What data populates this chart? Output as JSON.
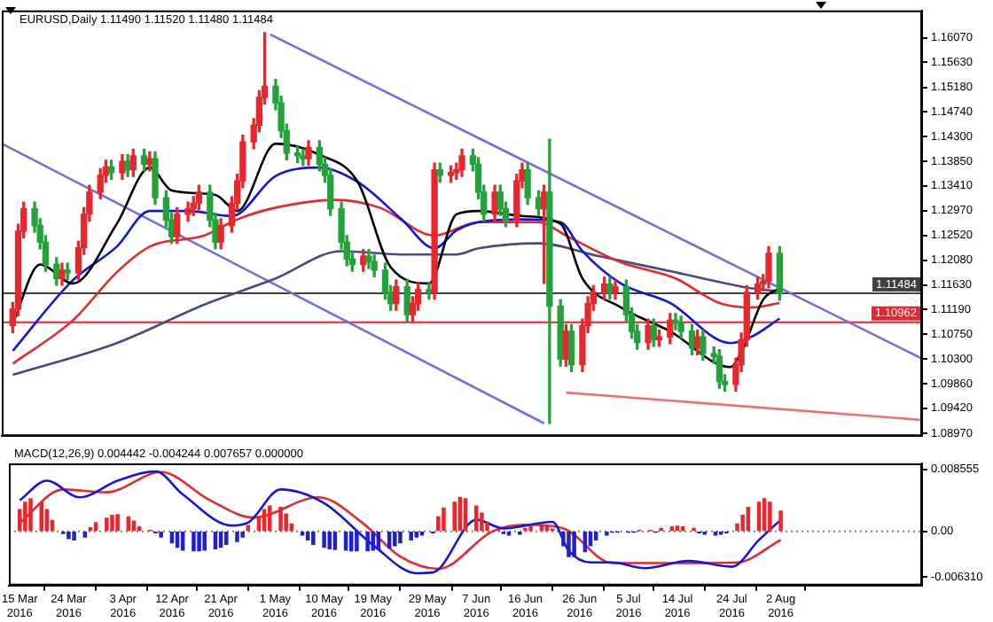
{
  "chart_data": [
    {
      "type": "candlestick",
      "title": "EURUSD,Daily 1.11490 1.11520 1.11480 1.11484",
      "tick_labels": "y",
      "x": [
        "2016-03-15",
        "2016-03-16",
        "2016-03-17",
        "2016-03-19",
        "2016-03-20",
        "2016-03-21",
        "2016-03-23",
        "2016-03-24",
        "2016-03-25",
        "2016-03-27",
        "2016-03-28",
        "2016-03-29",
        "2016-03-31",
        "2016-04-01",
        "2016-04-02",
        "2016-04-04",
        "2016-04-05",
        "2016-04-06",
        "2016-04-08",
        "2016-04-09",
        "2016-04-10",
        "2016-04-12",
        "2016-04-13",
        "2016-04-14",
        "2016-04-16",
        "2016-04-17",
        "2016-04-18",
        "2016-04-20",
        "2016-04-21",
        "2016-04-22",
        "2016-04-24",
        "2016-04-25",
        "2016-04-26",
        "2016-04-28",
        "2016-04-29",
        "2016-04-30",
        "2016-05-02",
        "2016-05-03",
        "2016-05-04",
        "2016-05-06",
        "2016-05-07",
        "2016-05-08",
        "2016-05-10",
        "2016-05-11",
        "2016-05-12",
        "2016-05-14",
        "2016-05-15",
        "2016-05-16",
        "2016-05-18",
        "2016-05-19",
        "2016-05-20",
        "2016-05-22",
        "2016-05-23",
        "2016-05-24",
        "2016-05-26",
        "2016-05-27",
        "2016-05-28",
        "2016-05-30",
        "2016-05-31",
        "2016-06-01",
        "2016-06-03",
        "2016-06-04",
        "2016-06-05",
        "2016-06-07",
        "2016-06-08",
        "2016-06-09",
        "2016-06-11",
        "2016-06-12",
        "2016-06-13",
        "2016-06-15",
        "2016-06-16",
        "2016-06-17",
        "2016-06-19",
        "2016-06-20",
        "2016-06-21",
        "2016-06-23",
        "2016-06-24",
        "2016-06-25",
        "2016-06-27",
        "2016-06-28",
        "2016-06-29",
        "2016-07-01",
        "2016-07-02",
        "2016-07-03",
        "2016-07-05",
        "2016-07-06",
        "2016-07-07",
        "2016-07-09",
        "2016-07-10",
        "2016-07-11",
        "2016-07-13",
        "2016-07-14",
        "2016-07-15",
        "2016-07-17",
        "2016-07-18",
        "2016-07-19",
        "2016-07-21",
        "2016-07-22",
        "2016-07-23",
        "2016-07-25",
        "2016-07-26",
        "2016-07-27",
        "2016-07-29",
        "2016-07-30",
        "2016-07-31",
        "2016-08-02"
      ],
      "xlim": [
        "2016-03-13",
        "2016-08-28"
      ],
      "ylim": [
        1.0892,
        1.1656
      ],
      "yticks": [
        {
          "value": 1.1607,
          "label": "1.16070"
        },
        {
          "value": 1.1563,
          "label": "1.15630"
        },
        {
          "value": 1.1518,
          "label": "1.15180"
        },
        {
          "value": 1.1474,
          "label": "1.14740"
        },
        {
          "value": 1.143,
          "label": "1.14300"
        },
        {
          "value": 1.1385,
          "label": "1.13850"
        },
        {
          "value": 1.1341,
          "label": "1.13410"
        },
        {
          "value": 1.1297,
          "label": "1.12970"
        },
        {
          "value": 1.1252,
          "label": "1.12520"
        },
        {
          "value": 1.1208,
          "label": "1.12080"
        },
        {
          "value": 1.1163,
          "label": "1.11630"
        },
        {
          "value": 1.1119,
          "label": "1.11190"
        },
        {
          "value": 1.1075,
          "label": "1.10750"
        },
        {
          "value": 1.103,
          "label": "1.10300"
        },
        {
          "value": 1.0986,
          "label": "1.09860"
        },
        {
          "value": 1.0942,
          "label": "1.09420"
        },
        {
          "value": 1.0897,
          "label": "1.08970"
        }
      ],
      "ref_lines": [
        {
          "axis": "y",
          "value": 1.11484,
          "label": "1.11484",
          "color": "#404040"
        },
        {
          "axis": "y",
          "value": 1.10962,
          "label": "1.10962",
          "color": "#e8262b"
        }
      ],
      "series": [
        {
          "ohlc": [
            [
              1.109,
              1.1132,
              1.1078,
              1.112
            ],
            [
              1.112,
              1.1272,
              1.1108,
              1.126
            ],
            [
              1.126,
              1.1312,
              1.1248,
              1.13
            ],
            [
              1.13,
              1.1312,
              1.1258,
              1.127
            ],
            [
              1.127,
              1.1282,
              1.1228,
              1.124
            ],
            [
              1.124,
              1.1252,
              1.1188,
              1.12
            ],
            [
              1.12,
              1.1212,
              1.1163,
              1.1175
            ],
            [
              1.1175,
              1.1202,
              1.1163,
              1.119
            ],
            [
              1.119,
              1.1202,
              1.1173,
              1.1185
            ],
            [
              1.1185,
              1.1242,
              1.1173,
              1.123
            ],
            [
              1.123,
              1.1302,
              1.1218,
              1.129
            ],
            [
              1.129,
              1.1342,
              1.1278,
              1.133
            ],
            [
              1.133,
              1.1372,
              1.1318,
              1.136
            ],
            [
              1.136,
              1.1387,
              1.1348,
              1.1375
            ],
            [
              1.1375,
              1.1387,
              1.1353,
              1.1365
            ],
            [
              1.1365,
              1.1397,
              1.1353,
              1.1385
            ],
            [
              1.1385,
              1.1397,
              1.1358,
              1.137
            ],
            [
              1.137,
              1.1407,
              1.1358,
              1.1395
            ],
            [
              1.1395,
              1.1407,
              1.1368,
              1.138
            ],
            [
              1.138,
              1.1402,
              1.1368,
              1.139
            ],
            [
              1.139,
              1.1402,
              1.1308,
              1.132
            ],
            [
              1.132,
              1.1332,
              1.1268,
              1.128
            ],
            [
              1.128,
              1.1292,
              1.1238,
              1.125
            ],
            [
              1.125,
              1.1302,
              1.1238,
              1.129
            ],
            [
              1.129,
              1.1312,
              1.1278,
              1.13
            ],
            [
              1.13,
              1.1322,
              1.1288,
              1.131
            ],
            [
              1.131,
              1.1342,
              1.1298,
              1.133
            ],
            [
              1.133,
              1.1342,
              1.1268,
              1.128
            ],
            [
              1.128,
              1.1292,
              1.1228,
              1.124
            ],
            [
              1.124,
              1.1282,
              1.1228,
              1.127
            ],
            [
              1.127,
              1.1322,
              1.1258,
              1.131
            ],
            [
              1.131,
              1.1362,
              1.1298,
              1.135
            ],
            [
              1.135,
              1.1432,
              1.1338,
              1.142
            ],
            [
              1.142,
              1.1462,
              1.1408,
              1.145
            ],
            [
              1.145,
              1.1512,
              1.1438,
              1.15
            ],
            [
              1.15,
              1.1616,
              1.1488,
              1.152
            ],
            [
              1.152,
              1.1532,
              1.1478,
              1.149
            ],
            [
              1.149,
              1.1502,
              1.1428,
              1.144
            ],
            [
              1.144,
              1.1452,
              1.1388,
              1.14
            ],
            [
              1.14,
              1.1412,
              1.1383,
              1.1395
            ],
            [
              1.1395,
              1.1407,
              1.1378,
              1.139
            ],
            [
              1.139,
              1.1422,
              1.1378,
              1.141
            ],
            [
              1.141,
              1.1422,
              1.1368,
              1.138
            ],
            [
              1.138,
              1.1392,
              1.1348,
              1.136
            ],
            [
              1.136,
              1.1372,
              1.1288,
              1.13
            ],
            [
              1.13,
              1.1312,
              1.1228,
              1.124
            ],
            [
              1.124,
              1.1252,
              1.1198,
              1.121
            ],
            [
              1.121,
              1.1222,
              1.1188,
              1.12
            ],
            [
              1.12,
              1.1227,
              1.1188,
              1.1215
            ],
            [
              1.1215,
              1.1227,
              1.1193,
              1.1205
            ],
            [
              1.1205,
              1.1217,
              1.1178,
              1.119
            ],
            [
              1.119,
              1.1202,
              1.1138,
              1.115
            ],
            [
              1.115,
              1.1162,
              1.1118,
              1.113
            ],
            [
              1.113,
              1.1172,
              1.1118,
              1.116
            ],
            [
              1.116,
              1.1172,
              1.1098,
              1.111
            ],
            [
              1.111,
              1.1142,
              1.1098,
              1.113
            ],
            [
              1.113,
              1.1167,
              1.1118,
              1.1155
            ],
            [
              1.1155,
              1.1167,
              1.1138,
              1.115
            ],
            [
              1.115,
              1.1382,
              1.1138,
              1.137
            ],
            [
              1.137,
              1.1382,
              1.1348,
              1.136
            ],
            [
              1.136,
              1.1377,
              1.1348,
              1.1365
            ],
            [
              1.1365,
              1.1382,
              1.1353,
              1.137
            ],
            [
              1.137,
              1.1407,
              1.1358,
              1.1395
            ],
            [
              1.1395,
              1.1407,
              1.1368,
              1.138
            ],
            [
              1.138,
              1.1392,
              1.1318,
              1.133
            ],
            [
              1.133,
              1.1342,
              1.1278,
              1.129
            ],
            [
              1.129,
              1.1342,
              1.1278,
              1.133
            ],
            [
              1.133,
              1.1342,
              1.1288,
              1.13
            ],
            [
              1.13,
              1.1312,
              1.1268,
              1.128
            ],
            [
              1.128,
              1.1362,
              1.1268,
              1.135
            ],
            [
              1.135,
              1.1382,
              1.1338,
              1.137
            ],
            [
              1.137,
              1.1382,
              1.1308,
              1.132
            ],
            [
              1.132,
              1.1332,
              1.1288,
              1.13
            ],
            [
              1.13,
              1.1342,
              1.1166,
              1.133
            ],
            [
              1.133,
              1.1425,
              1.0915,
              1.1125
            ],
            [
              1.1125,
              1.1137,
              1.1018,
              1.103
            ],
            [
              1.103,
              1.1092,
              1.1018,
              1.108
            ],
            [
              1.108,
              1.1092,
              1.1008,
              1.102
            ],
            [
              1.102,
              1.1102,
              1.1008,
              1.109
            ],
            [
              1.109,
              1.1142,
              1.1078,
              1.113
            ],
            [
              1.113,
              1.1162,
              1.1118,
              1.115
            ],
            [
              1.115,
              1.1177,
              1.1138,
              1.1165
            ],
            [
              1.1165,
              1.1177,
              1.1138,
              1.115
            ],
            [
              1.115,
              1.1172,
              1.1138,
              1.116
            ],
            [
              1.116,
              1.1172,
              1.1098,
              1.111
            ],
            [
              1.111,
              1.1122,
              1.1068,
              1.108
            ],
            [
              1.108,
              1.1092,
              1.1048,
              1.106
            ],
            [
              1.106,
              1.1102,
              1.1048,
              1.109
            ],
            [
              1.109,
              1.1102,
              1.1053,
              1.1065
            ],
            [
              1.1065,
              1.1082,
              1.1053,
              1.107
            ],
            [
              1.107,
              1.1112,
              1.1058,
              1.11
            ],
            [
              1.11,
              1.1112,
              1.1083,
              1.1095
            ],
            [
              1.1095,
              1.1107,
              1.1068,
              1.108
            ],
            [
              1.108,
              1.1092,
              1.1038,
              1.105
            ],
            [
              1.105,
              1.1082,
              1.1038,
              1.107
            ],
            [
              1.107,
              1.1082,
              1.1028,
              1.104
            ],
            [
              1.104,
              1.1052,
              1.1023,
              1.1035
            ],
            [
              1.1035,
              1.1047,
              1.0978,
              1.099
            ],
            [
              1.099,
              1.1002,
              1.0973,
              1.0985
            ],
            [
              1.0985,
              1.1032,
              1.0973,
              1.102
            ],
            [
              1.102,
              1.1077,
              1.1008,
              1.1065
            ],
            [
              1.1065,
              1.1162,
              1.1053,
              1.115
            ],
            [
              1.115,
              1.1177,
              1.1138,
              1.1165
            ],
            [
              1.1165,
              1.1182,
              1.1153,
              1.117
            ],
            [
              1.117,
              1.1232,
              1.1158,
              1.122
            ],
            [
              1.122,
              1.1232,
              1.1136,
              1.1148
            ]
          ],
          "colors": [
            "#e8262b",
            "#e8262b",
            "#e8262b",
            "#22a33a",
            "#22a33a",
            "#22a33a",
            "#22a33a",
            "#e8262b",
            "#22a33a",
            "#e8262b",
            "#e8262b",
            "#e8262b",
            "#e8262b",
            "#e8262b",
            "#22a33a",
            "#e8262b",
            "#22a33a",
            "#e8262b",
            "#22a33a",
            "#e8262b",
            "#22a33a",
            "#22a33a",
            "#22a33a",
            "#e8262b",
            "#e8262b",
            "#e8262b",
            "#e8262b",
            "#22a33a",
            "#22a33a",
            "#e8262b",
            "#e8262b",
            "#e8262b",
            "#e8262b",
            "#e8262b",
            "#e8262b",
            "#e8262b",
            "#22a33a",
            "#22a33a",
            "#22a33a",
            "#22a33a",
            "#22a33a",
            "#e8262b",
            "#22a33a",
            "#22a33a",
            "#22a33a",
            "#22a33a",
            "#22a33a",
            "#22a33a",
            "#e8262b",
            "#22a33a",
            "#22a33a",
            "#22a33a",
            "#22a33a",
            "#e8262b",
            "#22a33a",
            "#e8262b",
            "#e8262b",
            "#22a33a",
            "#e8262b",
            "#22a33a",
            "#e8262b",
            "#e8262b",
            "#e8262b",
            "#22a33a",
            "#22a33a",
            "#22a33a",
            "#e8262b",
            "#22a33a",
            "#22a33a",
            "#e8262b",
            "#e8262b",
            "#22a33a",
            "#22a33a",
            "#e8262b",
            "#22a33a",
            "#22a33a",
            "#e8262b",
            "#22a33a",
            "#e8262b",
            "#e8262b",
            "#e8262b",
            "#e8262b",
            "#22a33a",
            "#e8262b",
            "#22a33a",
            "#22a33a",
            "#22a33a",
            "#e8262b",
            "#22a33a",
            "#e8262b",
            "#e8262b",
            "#22a33a",
            "#22a33a",
            "#22a33a",
            "#e8262b",
            "#22a33a",
            "#22a33a",
            "#22a33a",
            "#22a33a",
            "#e8262b",
            "#e8262b",
            "#e8262b",
            "#e8262b",
            "#e8262b",
            "#e8262b",
            "#22a33a"
          ]
        },
        {
          "type": "line",
          "color": "#000000",
          "x": [
            "2016-03-15",
            "2016-03-20",
            "2016-03-26",
            "2016-04-03",
            "2016-04-09",
            "2016-04-13",
            "2016-04-21",
            "2016-04-25",
            "2016-05-02",
            "2016-05-10",
            "2016-05-17",
            "2016-05-23",
            "2016-05-30",
            "2016-06-04",
            "2016-06-08",
            "2016-06-16",
            "2016-06-23",
            "2016-06-27",
            "2016-07-04",
            "2016-07-13",
            "2016-07-24",
            "2016-07-26",
            "2016-07-30",
            "2016-08-02"
          ],
          "values": [
            1.1094,
            1.12,
            1.1166,
            1.1273,
            1.1374,
            1.1333,
            1.1325,
            1.1296,
            1.1417,
            1.1397,
            1.1348,
            1.1195,
            1.1166,
            1.129,
            1.1296,
            1.1287,
            1.1273,
            1.1175,
            1.1123,
            1.108,
            1.1016,
            1.1042,
            1.1137,
            1.1157
          ]
        },
        {
          "type": "line",
          "color": "#1414e0",
          "x": [
            "2016-03-15",
            "2016-03-26",
            "2016-04-03",
            "2016-04-09",
            "2016-04-16",
            "2016-04-24",
            "2016-05-02",
            "2016-05-10",
            "2016-05-17",
            "2016-05-25",
            "2016-05-31",
            "2016-06-04",
            "2016-06-08",
            "2016-06-16",
            "2016-06-23",
            "2016-06-27",
            "2016-07-04",
            "2016-07-13",
            "2016-07-24",
            "2016-07-28",
            "2016-08-02"
          ],
          "values": [
            1.1045,
            1.1172,
            1.1232,
            1.1296,
            1.1296,
            1.1287,
            1.1359,
            1.1374,
            1.1348,
            1.1281,
            1.1229,
            1.1261,
            1.1276,
            1.1281,
            1.1276,
            1.1224,
            1.1166,
            1.1131,
            1.1059,
            1.1071,
            1.1103
          ]
        },
        {
          "type": "line",
          "color": "#e8262b",
          "x": [
            "2016-03-15",
            "2016-03-26",
            "2016-04-03",
            "2016-04-09",
            "2016-04-19",
            "2016-04-25",
            "2016-05-02",
            "2016-05-13",
            "2016-05-21",
            "2016-05-31",
            "2016-06-08",
            "2016-06-19",
            "2016-06-24",
            "2016-07-04",
            "2016-07-14",
            "2016-07-22",
            "2016-07-28",
            "2016-08-02"
          ],
          "values": [
            1.1022,
            1.11,
            1.1186,
            1.1232,
            1.1252,
            1.1281,
            1.1302,
            1.1316,
            1.1302,
            1.1252,
            1.1276,
            1.1276,
            1.1252,
            1.1204,
            1.1175,
            1.1131,
            1.1123,
            1.1131
          ]
        },
        {
          "type": "line",
          "color": "#4a4a80",
          "x": [
            "2016-03-15",
            "2016-04-03",
            "2016-04-19",
            "2016-05-02",
            "2016-05-14",
            "2016-05-25",
            "2016-06-04",
            "2016-06-08",
            "2016-06-19",
            "2016-06-30",
            "2016-07-14",
            "2016-07-28",
            "2016-08-02"
          ],
          "values": [
            1.1002,
            1.1059,
            1.1128,
            1.1175,
            1.1224,
            1.1218,
            1.1218,
            1.1229,
            1.1238,
            1.1215,
            1.1186,
            1.1157,
            1.1152
          ]
        },
        {
          "type": "line",
          "color": "#7070e0",
          "x": [
            "2016-05-01",
            "2016-08-28"
          ],
          "values": [
            1.1613,
            1.1031
          ]
        },
        {
          "type": "line",
          "color": "#7070e0",
          "x": [
            "2016-03-13",
            "2016-06-20"
          ],
          "values": [
            1.1417,
            1.0915
          ]
        },
        {
          "type": "line",
          "color": "#f07070",
          "x": [
            "2016-06-24",
            "2016-08-28"
          ],
          "values": [
            1.097,
            1.0921
          ]
        }
      ]
    },
    {
      "type": "bar",
      "title": "MACD(12,26,9) 0.004442 -0.004244 0.007657 0.000000",
      "x": [
        "2016-03-15",
        "2016-03-16",
        "2016-03-17",
        "2016-03-19",
        "2016-03-20",
        "2016-03-21",
        "2016-03-23",
        "2016-03-24",
        "2016-03-25",
        "2016-03-27",
        "2016-03-28",
        "2016-03-29",
        "2016-03-31",
        "2016-04-01",
        "2016-04-02",
        "2016-04-04",
        "2016-04-05",
        "2016-04-06",
        "2016-04-08",
        "2016-04-09",
        "2016-04-10",
        "2016-04-12",
        "2016-04-13",
        "2016-04-14",
        "2016-04-16",
        "2016-04-17",
        "2016-04-18",
        "2016-04-20",
        "2016-04-21",
        "2016-04-22",
        "2016-04-24",
        "2016-04-25",
        "2016-04-26",
        "2016-04-28",
        "2016-04-29",
        "2016-04-30",
        "2016-05-02",
        "2016-05-03",
        "2016-05-04",
        "2016-05-06",
        "2016-05-07",
        "2016-05-08",
        "2016-05-10",
        "2016-05-11",
        "2016-05-12",
        "2016-05-14",
        "2016-05-15",
        "2016-05-16",
        "2016-05-18",
        "2016-05-19",
        "2016-05-20",
        "2016-05-22",
        "2016-05-23",
        "2016-05-24",
        "2016-05-26",
        "2016-05-27",
        "2016-05-28",
        "2016-05-30",
        "2016-05-31",
        "2016-06-01",
        "2016-06-03",
        "2016-06-04",
        "2016-06-05",
        "2016-06-07",
        "2016-06-08",
        "2016-06-09",
        "2016-06-11",
        "2016-06-12",
        "2016-06-13",
        "2016-06-15",
        "2016-06-16",
        "2016-06-17",
        "2016-06-19",
        "2016-06-20",
        "2016-06-21",
        "2016-06-23",
        "2016-06-24",
        "2016-06-25",
        "2016-06-27",
        "2016-06-28",
        "2016-06-29",
        "2016-07-01",
        "2016-07-02",
        "2016-07-03",
        "2016-07-05",
        "2016-07-06",
        "2016-07-07",
        "2016-07-09",
        "2016-07-10",
        "2016-07-11",
        "2016-07-13",
        "2016-07-14",
        "2016-07-15",
        "2016-07-17",
        "2016-07-18",
        "2016-07-19",
        "2016-07-21",
        "2016-07-22",
        "2016-07-23",
        "2016-07-25",
        "2016-07-26",
        "2016-07-27",
        "2016-07-29",
        "2016-07-30",
        "2016-07-31",
        "2016-08-02"
      ],
      "xlim": [
        "2016-03-13",
        "2016-08-28"
      ],
      "ylim": [
        -0.0075,
        0.0094
      ],
      "xticks": [
        {
          "value": "2016-03-15",
          "label": "15 Mar 2016"
        },
        {
          "value": "2016-03-24",
          "label": "24 Mar 2016"
        },
        {
          "value": "2016-04-03",
          "label": "3 Apr 2016"
        },
        {
          "value": "2016-04-12",
          "label": "12 Apr 2016"
        },
        {
          "value": "2016-04-21",
          "label": "21 Apr 2016"
        },
        {
          "value": "2016-05-01",
          "label": "1 May 2016"
        },
        {
          "value": "2016-05-10",
          "label": "10 May 2016"
        },
        {
          "value": "2016-05-19",
          "label": "19 May 2016"
        },
        {
          "value": "2016-05-29",
          "label": "29 May 2016"
        },
        {
          "value": "2016-06-07",
          "label": "7 Jun 2016"
        },
        {
          "value": "2016-06-16",
          "label": "16 Jun 2016"
        },
        {
          "value": "2016-06-26",
          "label": "26 Jun 2016"
        },
        {
          "value": "2016-07-05",
          "label": "5 Jul 2016"
        },
        {
          "value": "2016-07-14",
          "label": "14 Jul 2016"
        },
        {
          "value": "2016-07-24",
          "label": "24 Jul 2016"
        },
        {
          "value": "2016-08-02",
          "label": "2 Aug 2016"
        }
      ],
      "yticks": [
        0.008555,
        {
          "value": 0,
          "label": "0.00"
        },
        {
          "value": -0.00631,
          "label": "-0.006310"
        }
      ],
      "ref_lines": [
        {
          "axis": "y",
          "value": 0,
          "color": "#808080",
          "line_style": "dotted"
        }
      ],
      "series": [
        {
          "values": [
            0.003,
            0.004,
            0.0045,
            0.004,
            0.003,
            0.0015,
            -0.0003,
            -0.001,
            -0.0012,
            -0.0008,
            0.0005,
            0.0012,
            0.0018,
            0.0022,
            0.0023,
            0.002,
            0.0014,
            0.0006,
            0.0001,
            -0.0002,
            -0.0008,
            -0.0016,
            -0.0022,
            -0.0026,
            -0.0027,
            -0.0027,
            -0.0026,
            -0.0024,
            -0.0022,
            -0.0018,
            -0.0014,
            -0.0008,
            0.0008,
            0.002,
            0.003,
            0.0035,
            0.0033,
            0.0024,
            0.001,
            -0.0005,
            -0.0012,
            -0.0018,
            -0.0022,
            -0.0024,
            -0.0025,
            -0.0026,
            -0.0027,
            -0.0027,
            -0.0027,
            -0.0026,
            -0.0025,
            -0.0023,
            -0.002,
            -0.0016,
            -0.0012,
            -0.0008,
            -0.0005,
            -0.0002,
            0.002,
            0.0032,
            0.004,
            0.0047,
            0.0045,
            0.0035,
            0.0025,
            0.0012,
            0.0003,
            -0.0003,
            -0.0005,
            -0.0004,
            0.0004,
            0.0007,
            0.0008,
            0.0006,
            0.0003,
            -0.002,
            -0.0035,
            -0.0035,
            -0.0028,
            -0.002,
            -0.0012,
            -0.0005,
            -0.0001,
            -0.0001,
            -0.0001,
            -0.0001,
            0.0001,
            0.0001,
            -0.0001,
            0.0004,
            0.0006,
            0.0007,
            0.0006,
            0.0004,
            -0.0002,
            -0.0004,
            -0.0005,
            -0.0004,
            -0.0002,
            0.001,
            0.0022,
            0.0033,
            0.004,
            0.0045,
            0.004,
            0.0028
          ],
          "colors": [
            "#e8262b",
            "#e8262b",
            "#e8262b",
            "#e8262b",
            "#e8262b",
            "#e8262b",
            "#2020d0",
            "#2020d0",
            "#2020d0",
            "#2020d0",
            "#e8262b",
            "#e8262b",
            "#e8262b",
            "#e8262b",
            "#e8262b",
            "#e8262b",
            "#e8262b",
            "#e8262b",
            "#e8262b",
            "#2020d0",
            "#2020d0",
            "#2020d0",
            "#2020d0",
            "#2020d0",
            "#2020d0",
            "#2020d0",
            "#2020d0",
            "#2020d0",
            "#2020d0",
            "#2020d0",
            "#2020d0",
            "#2020d0",
            "#e8262b",
            "#e8262b",
            "#e8262b",
            "#e8262b",
            "#e8262b",
            "#e8262b",
            "#e8262b",
            "#2020d0",
            "#2020d0",
            "#2020d0",
            "#2020d0",
            "#2020d0",
            "#2020d0",
            "#2020d0",
            "#2020d0",
            "#2020d0",
            "#2020d0",
            "#2020d0",
            "#2020d0",
            "#2020d0",
            "#2020d0",
            "#2020d0",
            "#2020d0",
            "#2020d0",
            "#2020d0",
            "#2020d0",
            "#e8262b",
            "#e8262b",
            "#e8262b",
            "#e8262b",
            "#e8262b",
            "#e8262b",
            "#e8262b",
            "#e8262b",
            "#e8262b",
            "#2020d0",
            "#2020d0",
            "#2020d0",
            "#e8262b",
            "#e8262b",
            "#e8262b",
            "#e8262b",
            "#e8262b",
            "#2020d0",
            "#2020d0",
            "#2020d0",
            "#2020d0",
            "#2020d0",
            "#2020d0",
            "#2020d0",
            "#2020d0",
            "#2020d0",
            "#2020d0",
            "#2020d0",
            "#e8262b",
            "#e8262b",
            "#2020d0",
            "#e8262b",
            "#e8262b",
            "#e8262b",
            "#e8262b",
            "#e8262b",
            "#2020d0",
            "#2020d0",
            "#2020d0",
            "#2020d0",
            "#2020d0",
            "#e8262b",
            "#e8262b",
            "#e8262b",
            "#e8262b",
            "#e8262b",
            "#e8262b",
            "#e8262b"
          ]
        },
        {
          "type": "line",
          "color": "#1414e0",
          "x": [
            "2016-03-15",
            "2016-03-20",
            "2016-03-26",
            "2016-04-02",
            "2016-04-09",
            "2016-04-14",
            "2016-04-23",
            "2016-04-26",
            "2016-05-02",
            "2016-05-10",
            "2016-05-19",
            "2016-05-27",
            "2016-05-30",
            "2016-06-07",
            "2016-06-12",
            "2016-06-21",
            "2016-06-24",
            "2016-06-28",
            "2016-07-02",
            "2016-07-08",
            "2016-07-16",
            "2016-07-24",
            "2016-07-29",
            "2016-08-02"
          ],
          "values": [
            0.0043,
            0.007,
            0.0047,
            0.007,
            0.0083,
            0.0051,
            0.0008,
            0.0012,
            0.0058,
            0.0039,
            -0.0019,
            -0.0058,
            -0.0057,
            0.0016,
            0.0004,
            0.0013,
            -0.0027,
            -0.0043,
            -0.0043,
            -0.0051,
            -0.0041,
            -0.0049,
            -0.0012,
            0.0016
          ]
        },
        {
          "type": "line",
          "color": "#e8262b",
          "x": [
            "2016-03-15",
            "2016-03-23",
            "2016-03-31",
            "2016-04-10",
            "2016-04-19",
            "2016-04-27",
            "2016-05-09",
            "2016-05-17",
            "2016-05-24",
            "2016-05-31",
            "2016-06-10",
            "2016-06-16",
            "2016-06-23",
            "2016-07-02",
            "2016-07-13",
            "2016-07-25",
            "2016-08-02"
          ],
          "values": [
            0.0012,
            0.0058,
            0.0054,
            0.0082,
            0.0043,
            0.0019,
            0.0047,
            0.0012,
            -0.0035,
            -0.0052,
            0,
            0.0009,
            0.0004,
            -0.0044,
            -0.0044,
            -0.0043,
            -0.0012
          ]
        }
      ]
    }
  ]
}
